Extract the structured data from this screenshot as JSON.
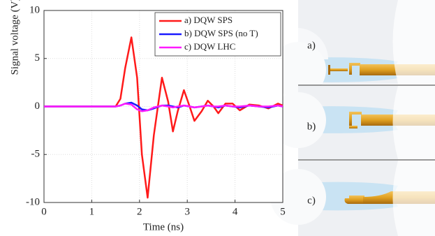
{
  "chart_data": {
    "type": "line",
    "xlabel": "Time (ns)",
    "ylabel": "Signal voltage (V)",
    "x": [
      0,
      1.5,
      1.6,
      1.7,
      1.83,
      1.95,
      2.05,
      2.17,
      2.3,
      2.47,
      2.6,
      2.7,
      2.8,
      2.93,
      3.05,
      3.15,
      3.3,
      3.43,
      3.55,
      3.65,
      3.8,
      3.95,
      4.1,
      4.3,
      4.5,
      4.7,
      4.9,
      5
    ],
    "series": [
      {
        "name": "a) DQW SPS",
        "color": "#ff1a1a",
        "values": [
          0,
          0,
          0.8,
          4,
          7.2,
          3,
          -5,
          -9.5,
          -3,
          3,
          0.5,
          -2.6,
          -0.5,
          1.7,
          0,
          -1.5,
          -0.5,
          0.6,
          0,
          -0.7,
          0.3,
          0.3,
          -0.4,
          0.2,
          0.1,
          -0.2,
          0.3,
          0.1
        ]
      },
      {
        "name": "b) DQW SPS (no T)",
        "color": "#1a1aff",
        "values": [
          0,
          0,
          0.1,
          0.3,
          0.4,
          0.1,
          -0.3,
          -0.4,
          -0.2,
          0.1,
          0.1,
          0,
          -0.1,
          0.1,
          0,
          -0.1,
          0,
          0.1,
          0,
          -0.1,
          0.1,
          0,
          -0.1,
          0.1,
          0,
          -0.1,
          0.1,
          0
        ]
      },
      {
        "name": "c) DQW LHC",
        "color": "#ff1aff",
        "values": [
          0,
          0,
          0.1,
          0.3,
          0.2,
          -0.3,
          -0.5,
          -0.4,
          -0.1,
          0.1,
          0,
          -0.1,
          0,
          0.1,
          0,
          -0.1,
          0,
          0.1,
          0,
          0,
          0.1,
          0,
          0,
          0.1,
          0,
          0,
          0.1,
          0
        ]
      }
    ],
    "xlim": [
      0,
      5
    ],
    "xticks": [
      0,
      1,
      2,
      3,
      4,
      5
    ],
    "ylim": [
      -10,
      10
    ],
    "yticks": [
      -10,
      -5,
      0,
      5,
      10
    ],
    "grid": true,
    "legend": "upper right"
  },
  "panels": {
    "labels": [
      "a)",
      "b)",
      "c)"
    ]
  }
}
